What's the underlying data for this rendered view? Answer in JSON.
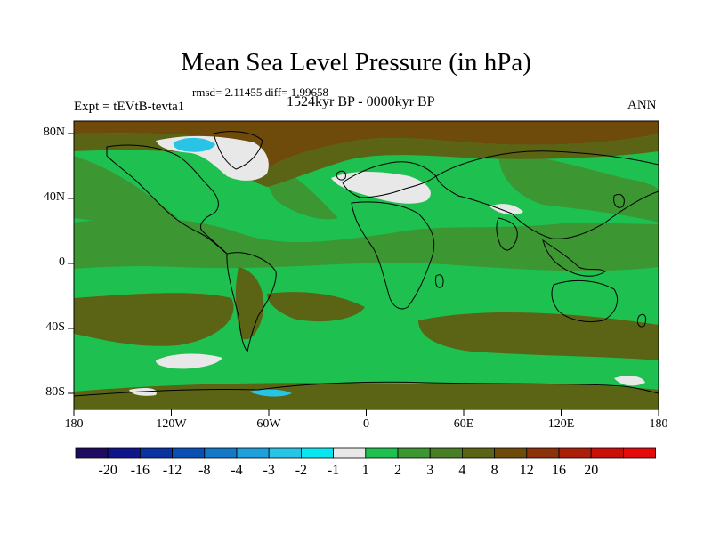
{
  "title": "Mean Sea Level Pressure (in hPa)",
  "stats": "rmsd= 2.11455  diff= 1.99658",
  "period": "1524kyr BP - 0000kyr BP",
  "experiment": "Expt = tEVtB-tevta1",
  "season": "ANN",
  "lat_labels": [
    "80N",
    "40N",
    "0",
    "40S",
    "80S"
  ],
  "lon_labels": [
    "180",
    "120W",
    "60W",
    "0",
    "60E",
    "120E",
    "180"
  ],
  "colorbar": {
    "colors": [
      "#1e0a5e",
      "#10158a",
      "#0a32a0",
      "#0a50b4",
      "#1478c8",
      "#1ea0dc",
      "#28c4e6",
      "#0ae6f0",
      "#e8e8e8",
      "#1ec050",
      "#3c9632",
      "#4a7d28",
      "#5a6414",
      "#6e4b0a",
      "#8c320a",
      "#aa1e0a",
      "#c80f0a",
      "#e60a0a"
    ],
    "labels": [
      "-20",
      "-16",
      "-12",
      "-8",
      "-4",
      "-3",
      "-2",
      "-1",
      "1",
      "2",
      "3",
      "4",
      "8",
      "12",
      "16",
      "20"
    ]
  },
  "map": {
    "ocean": "#1ec050",
    "mid": "#3c9632",
    "olive": "#5a6414",
    "brown": "#6e4b0a",
    "white": "#e8e8e8",
    "cyan": "#28c4e6"
  }
}
